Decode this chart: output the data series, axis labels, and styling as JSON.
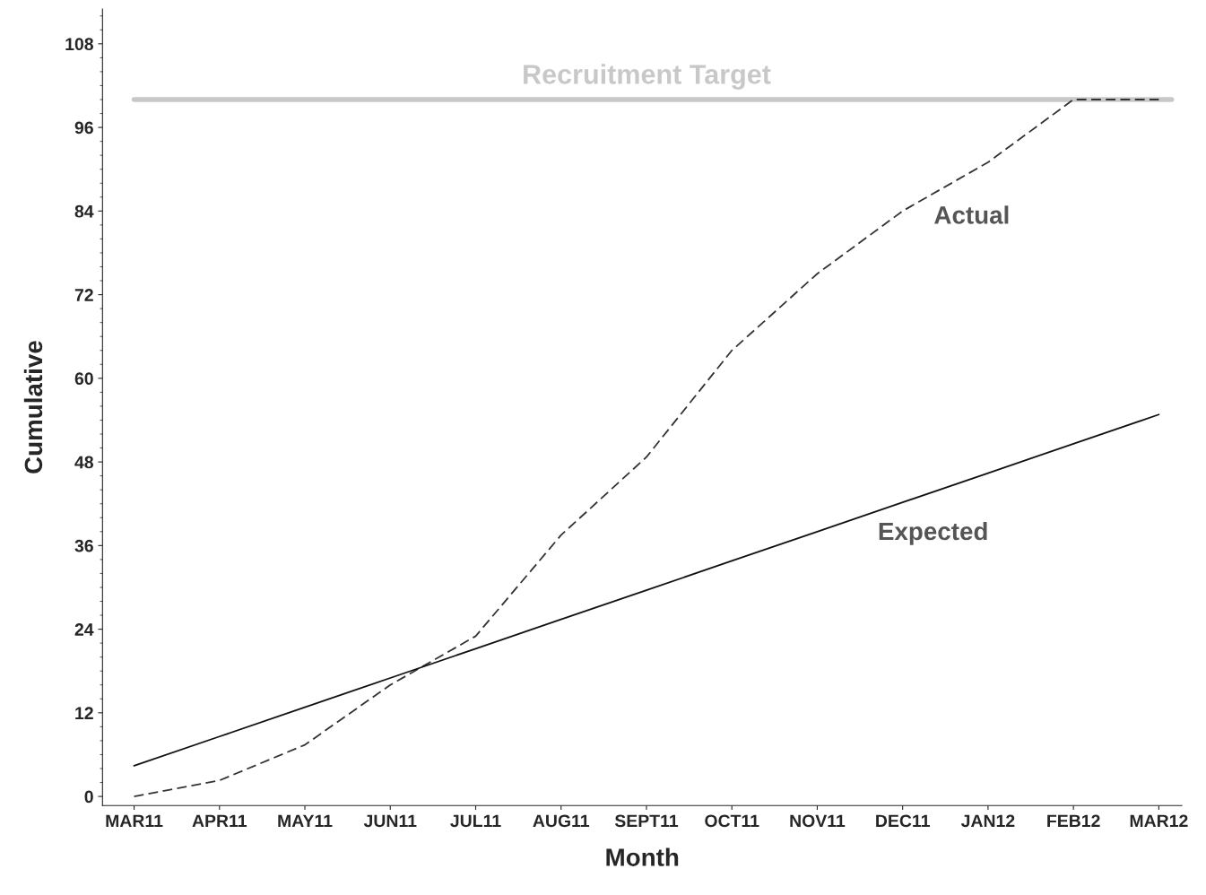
{
  "chart_data": {
    "type": "line",
    "xlabel": "Month",
    "ylabel": "Cumulative",
    "categories": [
      "MAR11",
      "APR11",
      "MAY11",
      "JUN11",
      "JUL11",
      "AUG11",
      "SEPT11",
      "OCT11",
      "NOV11",
      "DEC11",
      "JAN12",
      "FEB12",
      "MAR12"
    ],
    "series": [
      {
        "name": "Actual",
        "color": "#333333",
        "line_style": "dashed",
        "values": [
          0,
          2.3,
          7.4,
          16,
          23,
          37.5,
          48.7,
          64,
          75,
          84,
          91,
          100,
          100
        ]
      },
      {
        "name": "Expected",
        "color": "#111111",
        "line_style": "solid",
        "values": [
          4.4,
          8.6,
          12.8,
          17.0,
          21.2,
          25.4,
          29.6,
          33.8,
          38.0,
          42.2,
          46.4,
          50.6,
          54.8
        ]
      }
    ],
    "ref_lines": [
      {
        "axis": "y",
        "value": 100,
        "label": "Recruitment Target",
        "color": "#c8c8c8"
      }
    ],
    "ylim": [
      -1.3,
      113
    ],
    "yticks": [
      0,
      12,
      24,
      36,
      48,
      60,
      72,
      84,
      96,
      108
    ],
    "grid": false,
    "legend": false,
    "marker": "none"
  }
}
